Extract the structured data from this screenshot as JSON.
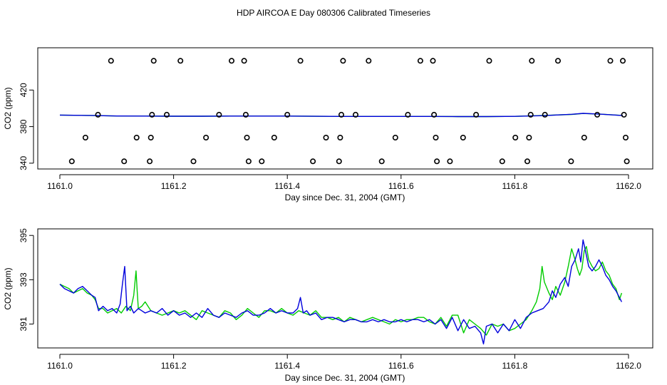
{
  "figure": {
    "title": "HDP AIRCOA E  Day 080306  Calibrated Timeseries"
  },
  "colors": {
    "green": "#00cc00",
    "blue": "#0000dd",
    "points": "#000000",
    "frame": "#000000"
  },
  "chart_data": [
    {
      "type": "line",
      "panel": "top",
      "xlabel": "Day since Dec. 31, 2004 (GMT)",
      "ylabel": "CO2 (ppm)",
      "xlim": [
        1161.0,
        1162.0
      ],
      "ylim": [
        336,
        460
      ],
      "xticks": [
        "1161.0",
        "1161.2",
        "1161.4",
        "1161.6",
        "1161.8",
        "1162.0"
      ],
      "yticks": [
        "340",
        "380",
        "420"
      ],
      "series": [
        {
          "color": "green",
          "x": [
            1161.0,
            1161.05,
            1161.1,
            1161.15,
            1161.2,
            1161.25,
            1161.3,
            1161.35,
            1161.4,
            1161.45,
            1161.5,
            1161.55,
            1161.6,
            1161.65,
            1161.7,
            1161.75,
            1161.8,
            1161.85,
            1161.9,
            1161.92,
            1161.95,
            1161.99
          ],
          "y": [
            392.6,
            392.2,
            391.6,
            391.5,
            391.4,
            391.4,
            391.5,
            391.5,
            391.5,
            391.3,
            391.1,
            391.1,
            391.1,
            391.1,
            391.0,
            391.0,
            391.2,
            392.2,
            393.3,
            394.3,
            393.6,
            392.2
          ]
        },
        {
          "color": "blue",
          "x": [
            1161.0,
            1161.05,
            1161.1,
            1161.15,
            1161.2,
            1161.25,
            1161.3,
            1161.35,
            1161.4,
            1161.45,
            1161.5,
            1161.55,
            1161.6,
            1161.65,
            1161.7,
            1161.75,
            1161.8,
            1161.85,
            1161.9,
            1161.92,
            1161.95,
            1161.99
          ],
          "y": [
            392.6,
            392.2,
            391.6,
            391.5,
            391.4,
            391.4,
            391.5,
            391.5,
            391.5,
            391.3,
            391.1,
            391.1,
            391.1,
            391.1,
            391.0,
            391.0,
            391.2,
            392.0,
            393.5,
            394.5,
            393.6,
            392.1
          ]
        }
      ],
      "points": {
        "x": [
          1161.021,
          1161.045,
          1161.067,
          1161.09,
          1161.113,
          1161.135,
          1161.158,
          1161.16,
          1161.162,
          1161.165,
          1161.188,
          1161.212,
          1161.235,
          1161.257,
          1161.28,
          1161.302,
          1161.324,
          1161.327,
          1161.329,
          1161.332,
          1161.355,
          1161.377,
          1161.4,
          1161.423,
          1161.445,
          1161.468,
          1161.491,
          1161.493,
          1161.495,
          1161.498,
          1161.52,
          1161.543,
          1161.566,
          1161.59,
          1161.612,
          1161.634,
          1161.656,
          1161.658,
          1161.661,
          1161.663,
          1161.686,
          1161.709,
          1161.732,
          1161.755,
          1161.778,
          1161.801,
          1161.822,
          1161.825,
          1161.828,
          1161.83,
          1161.853,
          1161.876,
          1161.899,
          1161.922,
          1161.945,
          1161.968,
          1161.99,
          1161.992,
          1161.995,
          1161.997
        ],
        "y": [
          342,
          368,
          393,
          452,
          342,
          368,
          342,
          368,
          393,
          452,
          393,
          452,
          342,
          368,
          393,
          452,
          452,
          393,
          368,
          342,
          342,
          368,
          393,
          452,
          342,
          368,
          342,
          368,
          393,
          452,
          393,
          452,
          342,
          368,
          393,
          452,
          452,
          393,
          368,
          342,
          342,
          368,
          393,
          452,
          342,
          368,
          342,
          368,
          393,
          452,
          393,
          452,
          342,
          368,
          393,
          452,
          452,
          393,
          368,
          342
        ]
      }
    },
    {
      "type": "line",
      "panel": "bottom",
      "xlabel": "Day since Dec. 31, 2004 (GMT)",
      "ylabel": "CO2 (ppm)",
      "xlim": [
        1161.0,
        1162.0
      ],
      "ylim": [
        390.05,
        395.2
      ],
      "xticks": [
        "1161.0",
        "1161.2",
        "1161.4",
        "1161.6",
        "1161.8",
        "1162.0"
      ],
      "yticks": [
        "391",
        "393",
        "395"
      ],
      "series": [
        {
          "color": "green",
          "x": [
            1161.0,
            1161.008,
            1161.016,
            1161.024,
            1161.032,
            1161.04,
            1161.048,
            1161.056,
            1161.062,
            1161.068,
            1161.076,
            1161.084,
            1161.092,
            1161.1,
            1161.108,
            1161.116,
            1161.124,
            1161.13,
            1161.134,
            1161.136,
            1161.138,
            1161.144,
            1161.15,
            1161.16,
            1161.17,
            1161.18,
            1161.19,
            1161.2,
            1161.21,
            1161.22,
            1161.23,
            1161.24,
            1161.25,
            1161.26,
            1161.27,
            1161.28,
            1161.29,
            1161.3,
            1161.31,
            1161.32,
            1161.33,
            1161.34,
            1161.35,
            1161.36,
            1161.37,
            1161.38,
            1161.39,
            1161.4,
            1161.41,
            1161.42,
            1161.43,
            1161.44,
            1161.45,
            1161.46,
            1161.47,
            1161.48,
            1161.49,
            1161.5,
            1161.51,
            1161.52,
            1161.53,
            1161.54,
            1161.55,
            1161.56,
            1161.57,
            1161.58,
            1161.59,
            1161.6,
            1161.61,
            1161.62,
            1161.63,
            1161.64,
            1161.65,
            1161.66,
            1161.67,
            1161.68,
            1161.69,
            1161.7,
            1161.71,
            1161.72,
            1161.73,
            1161.74,
            1161.75,
            1161.76,
            1161.77,
            1161.78,
            1161.79,
            1161.8,
            1161.81,
            1161.82,
            1161.83,
            1161.838,
            1161.844,
            1161.848,
            1161.852,
            1161.86,
            1161.866,
            1161.872,
            1161.88,
            1161.888,
            1161.894,
            1161.9,
            1161.906,
            1161.91,
            1161.914,
            1161.918,
            1161.922,
            1161.926,
            1161.93,
            1161.936,
            1161.942,
            1161.948,
            1161.954,
            1161.96,
            1161.966,
            1161.972,
            1161.978,
            1161.984,
            1161.988
          ],
          "y": [
            392.8,
            392.7,
            392.6,
            392.4,
            392.5,
            392.6,
            392.4,
            392.3,
            392.1,
            391.7,
            391.7,
            391.5,
            391.6,
            391.7,
            391.5,
            391.8,
            391.6,
            392.3,
            393.4,
            392.5,
            391.7,
            391.8,
            392.0,
            391.6,
            391.5,
            391.4,
            391.5,
            391.6,
            391.5,
            391.6,
            391.4,
            391.2,
            391.6,
            391.5,
            391.4,
            391.3,
            391.6,
            391.5,
            391.2,
            391.4,
            391.7,
            391.5,
            391.3,
            391.6,
            391.6,
            391.5,
            391.7,
            391.5,
            391.4,
            391.6,
            391.5,
            391.4,
            391.6,
            391.3,
            391.3,
            391.2,
            391.3,
            391.1,
            391.3,
            391.2,
            391.1,
            391.2,
            391.3,
            391.2,
            391.1,
            391.0,
            391.2,
            391.1,
            391.2,
            391.2,
            391.3,
            391.3,
            391.1,
            391.0,
            391.3,
            390.9,
            391.4,
            391.4,
            390.6,
            391.2,
            391.0,
            390.8,
            390.5,
            391.0,
            390.9,
            391.0,
            390.7,
            390.8,
            391.0,
            391.2,
            391.6,
            392.0,
            392.6,
            393.6,
            392.9,
            392.4,
            392.1,
            392.7,
            392.3,
            392.9,
            393.6,
            394.4,
            393.9,
            393.5,
            393.2,
            393.5,
            394.3,
            394.5,
            393.9,
            393.6,
            393.4,
            393.5,
            393.8,
            393.4,
            393.2,
            392.8,
            392.6,
            392.1,
            392.4
          ]
        },
        {
          "color": "blue",
          "x": [
            1161.0,
            1161.008,
            1161.016,
            1161.024,
            1161.032,
            1161.04,
            1161.048,
            1161.056,
            1161.062,
            1161.068,
            1161.076,
            1161.084,
            1161.092,
            1161.1,
            1161.106,
            1161.11,
            1161.114,
            1161.118,
            1161.124,
            1161.13,
            1161.138,
            1161.144,
            1161.15,
            1161.16,
            1161.17,
            1161.18,
            1161.19,
            1161.2,
            1161.21,
            1161.22,
            1161.23,
            1161.24,
            1161.25,
            1161.26,
            1161.27,
            1161.28,
            1161.29,
            1161.3,
            1161.31,
            1161.32,
            1161.33,
            1161.34,
            1161.35,
            1161.36,
            1161.37,
            1161.38,
            1161.39,
            1161.4,
            1161.41,
            1161.418,
            1161.423,
            1161.428,
            1161.434,
            1161.44,
            1161.45,
            1161.46,
            1161.47,
            1161.48,
            1161.49,
            1161.5,
            1161.51,
            1161.52,
            1161.53,
            1161.54,
            1161.55,
            1161.56,
            1161.57,
            1161.58,
            1161.59,
            1161.6,
            1161.61,
            1161.62,
            1161.63,
            1161.64,
            1161.65,
            1161.66,
            1161.67,
            1161.68,
            1161.69,
            1161.7,
            1161.71,
            1161.72,
            1161.73,
            1161.74,
            1161.745,
            1161.75,
            1161.76,
            1161.77,
            1161.78,
            1161.79,
            1161.8,
            1161.81,
            1161.82,
            1161.83,
            1161.84,
            1161.85,
            1161.86,
            1161.866,
            1161.872,
            1161.88,
            1161.888,
            1161.894,
            1161.9,
            1161.906,
            1161.912,
            1161.916,
            1161.92,
            1161.926,
            1161.93,
            1161.936,
            1161.942,
            1161.948,
            1161.954,
            1161.96,
            1161.966,
            1161.972,
            1161.978,
            1161.984,
            1161.988
          ],
          "y": [
            392.8,
            392.6,
            392.5,
            392.4,
            392.6,
            392.7,
            392.5,
            392.3,
            392.2,
            391.6,
            391.8,
            391.6,
            391.7,
            391.5,
            391.9,
            392.8,
            393.6,
            391.6,
            391.8,
            391.5,
            391.7,
            391.6,
            391.5,
            391.6,
            391.5,
            391.7,
            391.4,
            391.6,
            391.4,
            391.5,
            391.3,
            391.5,
            391.3,
            391.7,
            391.4,
            391.3,
            391.5,
            391.4,
            391.3,
            391.5,
            391.6,
            391.4,
            391.4,
            391.5,
            391.7,
            391.5,
            391.6,
            391.5,
            391.5,
            391.7,
            392.2,
            391.5,
            391.6,
            391.4,
            391.5,
            391.2,
            391.3,
            391.3,
            391.2,
            391.1,
            391.2,
            391.2,
            391.1,
            391.1,
            391.2,
            391.1,
            391.2,
            391.1,
            391.1,
            391.2,
            391.1,
            391.2,
            391.2,
            391.1,
            391.2,
            391.0,
            391.2,
            390.8,
            391.3,
            390.7,
            391.2,
            390.8,
            390.9,
            390.6,
            390.1,
            390.9,
            391.0,
            390.6,
            391.0,
            390.7,
            391.2,
            390.8,
            391.3,
            391.5,
            391.6,
            391.7,
            392.0,
            392.5,
            392.2,
            392.8,
            393.1,
            392.7,
            393.6,
            393.9,
            394.4,
            393.8,
            394.8,
            394.1,
            393.6,
            393.4,
            393.6,
            393.9,
            393.6,
            393.2,
            393.0,
            392.7,
            392.5,
            392.2,
            392.0
          ]
        }
      ]
    }
  ]
}
